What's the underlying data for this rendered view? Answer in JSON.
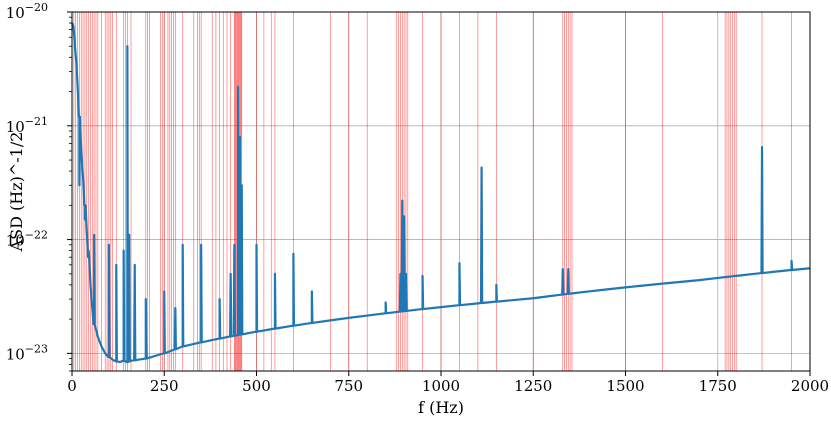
{
  "chart_data": {
    "type": "line",
    "title": "",
    "xlabel": "f (Hz)",
    "ylabel": "ASD (Hz)^-1/2",
    "xlim": [
      0,
      2000
    ],
    "ylim": [
      7e-24,
      1e-20
    ],
    "yscale": "log",
    "grid": true,
    "x_ticks": [
      {
        "value": 0,
        "label": "0"
      },
      {
        "value": 250,
        "label": "250"
      },
      {
        "value": 500,
        "label": "500"
      },
      {
        "value": 750,
        "label": "750"
      },
      {
        "value": 1000,
        "label": "1000"
      },
      {
        "value": 1250,
        "label": "1250"
      },
      {
        "value": 1500,
        "label": "1500"
      },
      {
        "value": 1750,
        "label": "1750"
      },
      {
        "value": 2000,
        "label": "2000"
      }
    ],
    "y_ticks": [
      {
        "value": 1e-23,
        "base": "10",
        "exp": "−23"
      },
      {
        "value": 1e-22,
        "base": "10",
        "exp": "−22"
      },
      {
        "value": 1e-21,
        "base": "10",
        "exp": "−21"
      },
      {
        "value": 1e-20,
        "base": "10",
        "exp": "−20"
      }
    ],
    "series": [
      {
        "color": "#1f77b4",
        "points": [
          [
            0,
            8e-21
          ],
          [
            4,
            7.5e-21
          ],
          [
            8,
            5e-21
          ],
          [
            12,
            3.5e-21
          ],
          [
            16,
            2e-21
          ],
          [
            20,
            1.2e-21
          ],
          [
            25,
            6e-22
          ],
          [
            30,
            3.5e-22
          ],
          [
            35,
            2e-22
          ],
          [
            40,
            1.2e-22
          ],
          [
            45,
            7e-23
          ],
          [
            50,
            4e-23
          ],
          [
            55,
            2.5e-23
          ],
          [
            60,
            1.8e-23
          ],
          [
            70,
            1.4e-23
          ],
          [
            80,
            1.15e-23
          ],
          [
            90,
            1e-23
          ],
          [
            100,
            9.3e-24
          ],
          [
            110,
            8.8e-24
          ],
          [
            120,
            8.5e-24
          ],
          [
            130,
            8.4e-24
          ],
          [
            140,
            8.6e-24
          ],
          [
            150,
            8.4e-24
          ],
          [
            160,
            8.6e-24
          ],
          [
            180,
            8.8e-24
          ],
          [
            200,
            9e-24
          ],
          [
            250,
            1e-23
          ],
          [
            300,
            1.15e-23
          ],
          [
            350,
            1.25e-23
          ],
          [
            400,
            1.35e-23
          ],
          [
            450,
            1.45e-23
          ],
          [
            500,
            1.55e-23
          ],
          [
            550,
            1.65e-23
          ],
          [
            600,
            1.75e-23
          ],
          [
            650,
            1.85e-23
          ],
          [
            700,
            1.95e-23
          ],
          [
            750,
            2.05e-23
          ],
          [
            800,
            2.15e-23
          ],
          [
            850,
            2.25e-23
          ],
          [
            900,
            2.35e-23
          ],
          [
            950,
            2.45e-23
          ],
          [
            1000,
            2.55e-23
          ],
          [
            1050,
            2.65e-23
          ],
          [
            1100,
            2.75e-23
          ],
          [
            1150,
            2.85e-23
          ],
          [
            1200,
            2.95e-23
          ],
          [
            1250,
            3.05e-23
          ],
          [
            1300,
            3.2e-23
          ],
          [
            1350,
            3.35e-23
          ],
          [
            1400,
            3.5e-23
          ],
          [
            1450,
            3.65e-23
          ],
          [
            1500,
            3.8e-23
          ],
          [
            1550,
            3.95e-23
          ],
          [
            1600,
            4.1e-23
          ],
          [
            1650,
            4.25e-23
          ],
          [
            1700,
            4.4e-23
          ],
          [
            1750,
            4.6e-23
          ],
          [
            1800,
            4.8e-23
          ],
          [
            1850,
            5e-23
          ],
          [
            1900,
            5.2e-23
          ],
          [
            1950,
            5.4e-23
          ],
          [
            2000,
            5.6e-23
          ]
        ],
        "peaks": [
          [
            20,
            3e-22
          ],
          [
            35,
            1.5e-22
          ],
          [
            45,
            8e-23
          ],
          [
            60,
            1.1e-22
          ],
          [
            100,
            9e-23
          ],
          [
            120,
            6e-23
          ],
          [
            140,
            8e-23
          ],
          [
            150,
            5e-21
          ],
          [
            155,
            1.1e-22
          ],
          [
            170,
            6e-23
          ],
          [
            200,
            3e-23
          ],
          [
            250,
            3.5e-23
          ],
          [
            280,
            2.5e-23
          ],
          [
            300,
            9e-23
          ],
          [
            350,
            9e-23
          ],
          [
            400,
            3e-23
          ],
          [
            430,
            5e-23
          ],
          [
            440,
            9e-23
          ],
          [
            450,
            2.2e-21
          ],
          [
            455,
            8e-22
          ],
          [
            460,
            3e-22
          ],
          [
            500,
            9e-23
          ],
          [
            550,
            5e-23
          ],
          [
            600,
            7.5e-23
          ],
          [
            650,
            3.5e-23
          ],
          [
            850,
            2.8e-23
          ],
          [
            890,
            5e-23
          ],
          [
            895,
            2.2e-22
          ],
          [
            900,
            1.6e-22
          ],
          [
            905,
            5e-23
          ],
          [
            950,
            4.8e-23
          ],
          [
            1050,
            6.2e-23
          ],
          [
            1110,
            4.3e-22
          ],
          [
            1150,
            4e-23
          ],
          [
            1330,
            5.5e-23
          ],
          [
            1345,
            5.5e-23
          ],
          [
            1870,
            6.5e-22
          ],
          [
            1950,
            6.5e-23
          ]
        ]
      }
    ],
    "vlines": {
      "color": "#ff0000",
      "x": [
        5,
        10,
        15,
        20,
        25,
        30,
        35,
        40,
        45,
        50,
        55,
        60,
        65,
        70,
        80,
        90,
        95,
        100,
        105,
        110,
        120,
        140,
        145,
        150,
        160,
        200,
        205,
        210,
        240,
        245,
        250,
        260,
        265,
        270,
        275,
        280,
        300,
        330,
        340,
        345,
        350,
        380,
        390,
        400,
        410,
        420,
        430,
        440,
        442,
        444,
        446,
        448,
        450,
        452,
        454,
        456,
        458,
        460,
        500,
        520,
        540,
        550,
        600,
        700,
        750,
        800,
        880,
        885,
        890,
        895,
        900,
        905,
        910,
        950,
        1000,
        1050,
        1100,
        1150,
        1250,
        1330,
        1335,
        1340,
        1345,
        1350,
        1355,
        1500,
        1600,
        1770,
        1775,
        1780,
        1785,
        1790,
        1795,
        1800,
        1870,
        1950
      ]
    }
  }
}
